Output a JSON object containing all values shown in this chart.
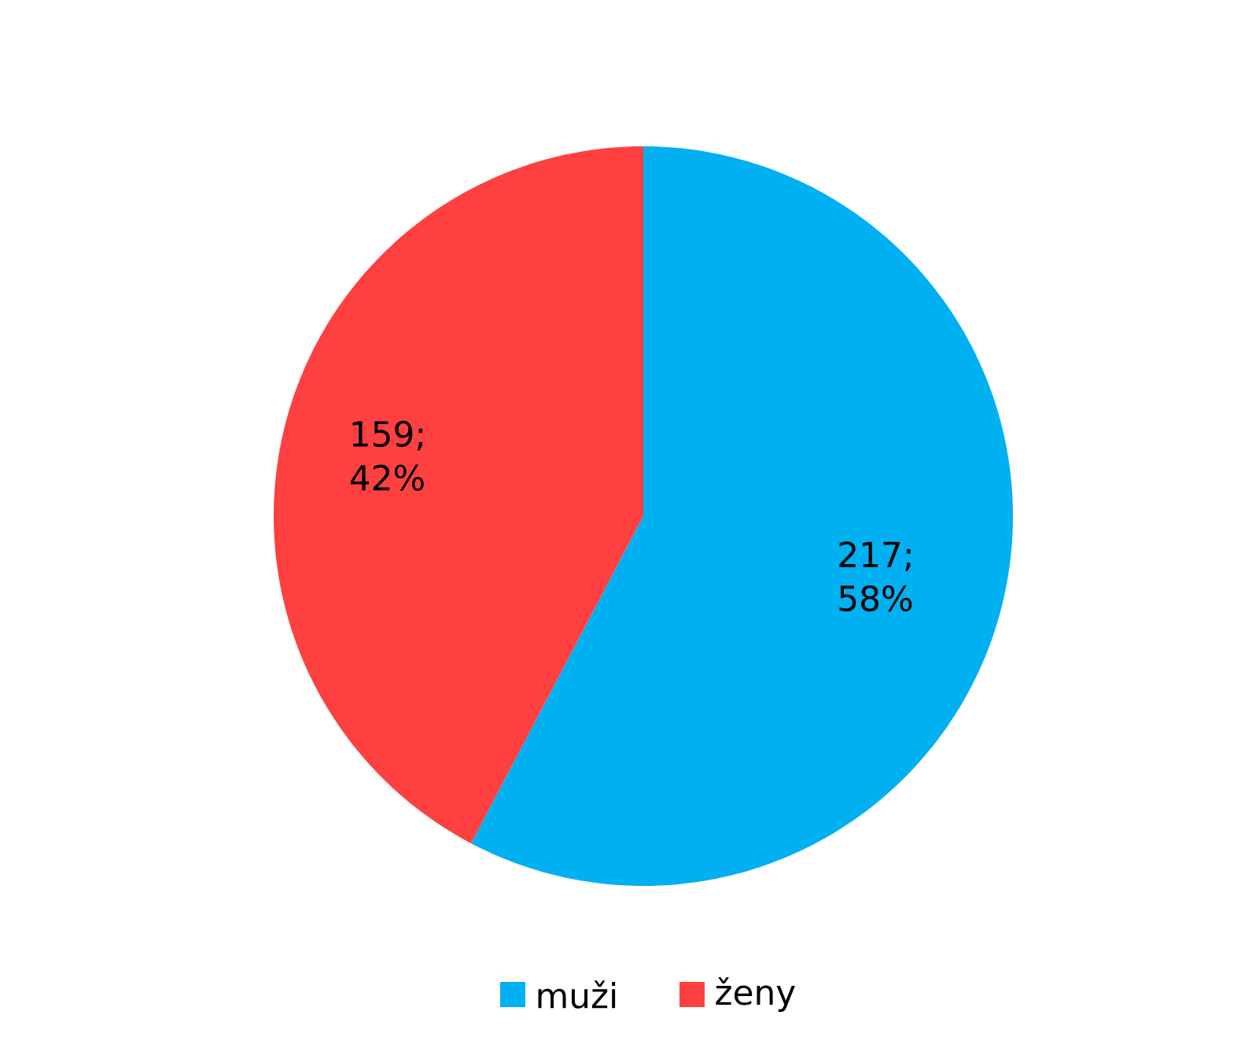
{
  "chart_data": {
    "type": "pie",
    "categories": [
      "muži",
      "ženy"
    ],
    "values": [
      217,
      159
    ],
    "colors": [
      "#00b0f0",
      "#ff4040"
    ],
    "value_labels": [
      "217; 58%",
      "159; 42%"
    ],
    "legend": "bottom"
  }
}
